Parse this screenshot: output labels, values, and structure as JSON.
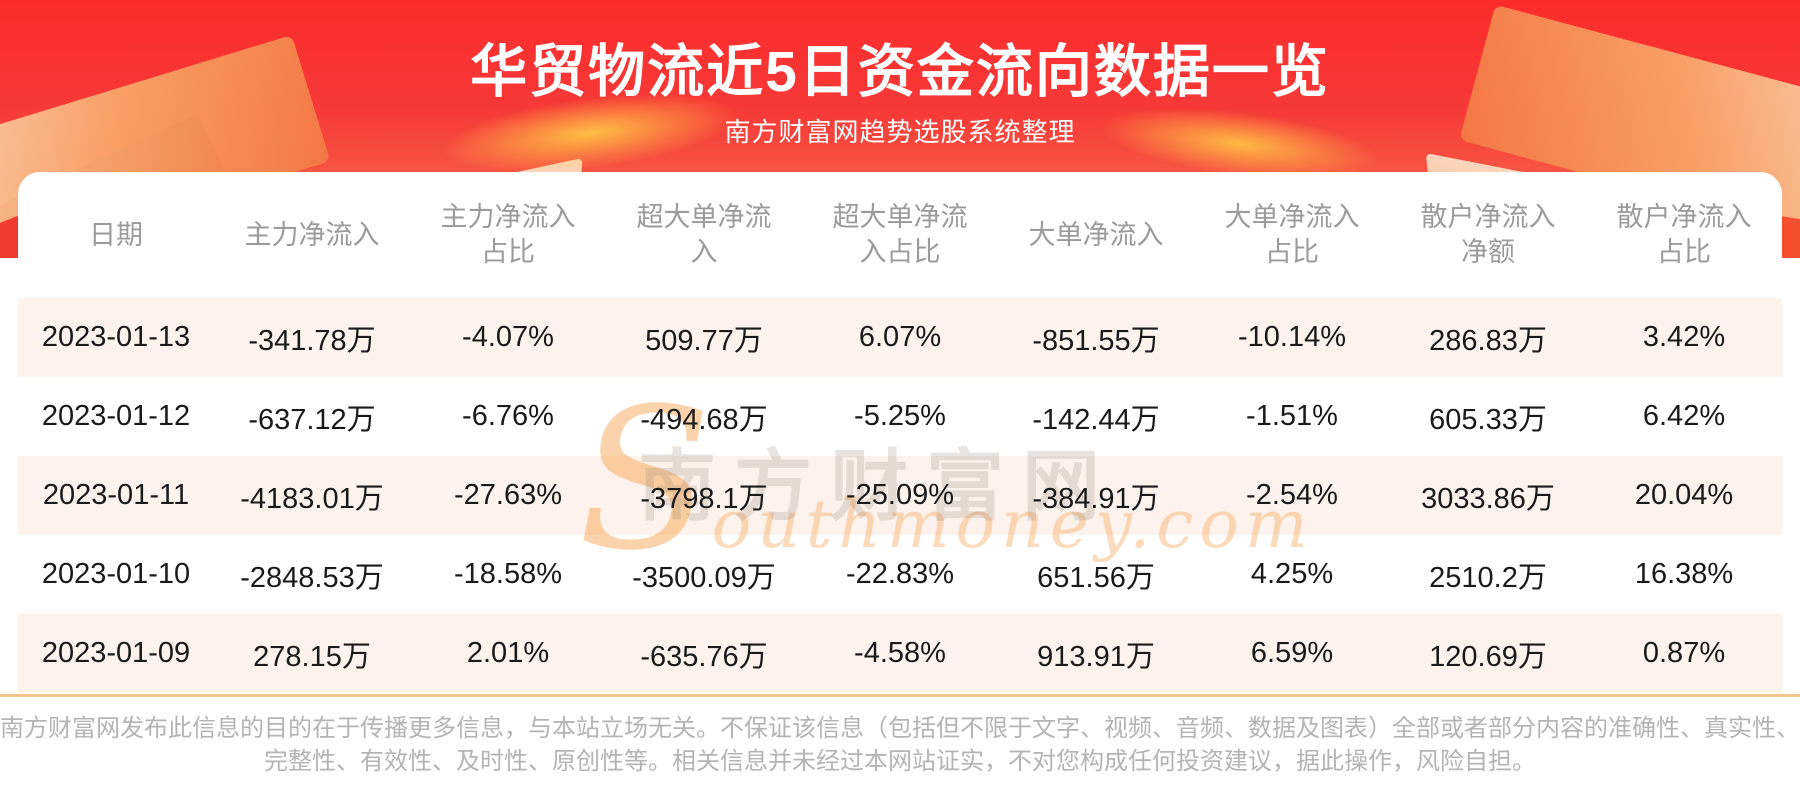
{
  "meta": {
    "title": "华贸物流近5日资金流向数据一览",
    "subtitle": "南方财富网趋势选股系统整理"
  },
  "chart_data": {
    "type": "table",
    "title": "华贸物流近5日资金流向数据一览",
    "unit": "万 (10k CNY)",
    "columns": [
      "日期",
      "主力净流入",
      "主力净流入占比",
      "超大单净流入",
      "超大单净流入占比",
      "大单净流入",
      "大单净流入占比",
      "散户净流入净额",
      "散户净流入占比"
    ],
    "rows": [
      [
        "2023-01-13",
        "-341.78万",
        "-4.07%",
        "509.77万",
        "6.07%",
        "-851.55万",
        "-10.14%",
        "286.83万",
        "3.42%"
      ],
      [
        "2023-01-12",
        "-637.12万",
        "-6.76%",
        "-494.68万",
        "-5.25%",
        "-142.44万",
        "-1.51%",
        "605.33万",
        "6.42%"
      ],
      [
        "2023-01-11",
        "-4183.01万",
        "-27.63%",
        "-3798.1万",
        "-25.09%",
        "-384.91万",
        "-2.54%",
        "3033.86万",
        "20.04%"
      ],
      [
        "2023-01-10",
        "-2848.53万",
        "-18.58%",
        "-3500.09万",
        "-22.83%",
        "651.56万",
        "4.25%",
        "2510.2万",
        "16.38%"
      ],
      [
        "2023-01-09",
        "278.15万",
        "2.01%",
        "-635.76万",
        "-4.58%",
        "913.91万",
        "6.59%",
        "120.69万",
        "0.87%"
      ]
    ]
  },
  "table": {
    "columns_display": [
      "日期",
      "主力净流入",
      "主力净流入\n占比",
      "超大单净流\n入",
      "超大单净流\n入占比",
      "大单净流入",
      "大单净流入\n占比",
      "散户净流入\n净额",
      "散户净流入\n占比"
    ]
  },
  "watermark": {
    "cn": "南方财富网",
    "s": "S",
    "en_rest": "outhmoney.com"
  },
  "footer": {
    "line1": "南方财富网发布此信息的目的在于传播更多信息，与本站立场无关。不保证该信息（包括但不限于文字、视频、音频、数据及图表）全部或者部分内容的准确性、真实性、",
    "line2": "完整性、有效性、及时性、原创性等。相关信息并未经过本网站证实，不对您构成任何投资建议，据此操作，风险自担。"
  },
  "colors": {
    "banner_red": "#fa2b2b",
    "row_stripe": "#fdf3ec",
    "accent_line": "#f2c38b",
    "header_text": "#9b9b9b",
    "footer_text": "#b4b4b4"
  }
}
